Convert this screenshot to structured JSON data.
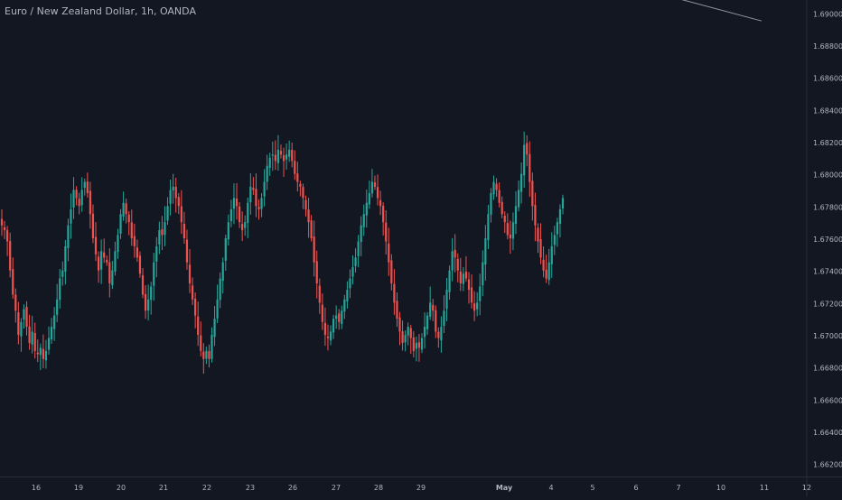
{
  "header": {
    "title": "Euro / New Zealand Dollar, 1h, OANDA"
  },
  "colors": {
    "background": "#131722",
    "up": "#26a69a",
    "down": "#ef5350",
    "axis_text": "#b2b5be",
    "axis_line": "#2a2e39"
  },
  "chart_data": {
    "type": "candlestick",
    "title": "Euro / New Zealand Dollar, 1h, OANDA",
    "ylim": [
      1.6612,
      1.6908
    ],
    "y_ticks": [
      "1.66200",
      "1.66400",
      "1.66600",
      "1.66800",
      "1.67000",
      "1.67200",
      "1.67400",
      "1.67600",
      "1.67800",
      "1.68000",
      "1.68200",
      "1.68400",
      "1.68600",
      "1.68800",
      "1.69000"
    ],
    "x_ticks": [
      "16",
      "19",
      "20",
      "21",
      "22",
      "23",
      "26",
      "27",
      "28",
      "29",
      "May",
      "4",
      "5",
      "6",
      "7",
      "10",
      "11",
      "12"
    ],
    "grid": false,
    "series_close": [
      1.6768,
      1.6765,
      1.6758,
      1.674,
      1.6725,
      1.6715,
      1.67,
      1.6708,
      1.6716,
      1.6705,
      1.6695,
      1.6702,
      1.669,
      1.6688,
      1.6692,
      1.6685,
      1.669,
      1.6698,
      1.6705,
      1.6712,
      1.6722,
      1.6735,
      1.674,
      1.6755,
      1.6768,
      1.6778,
      1.679,
      1.6785,
      1.678,
      1.679,
      1.6795,
      1.6788,
      1.6775,
      1.676,
      1.675,
      1.674,
      1.6752,
      1.6748,
      1.6745,
      1.6732,
      1.674,
      1.6752,
      1.6762,
      1.6775,
      1.6782,
      1.6775,
      1.677,
      1.676,
      1.6755,
      1.6748,
      1.6738,
      1.6725,
      1.6715,
      1.6722,
      1.673,
      1.6745,
      1.6755,
      1.6765,
      1.6762,
      1.677,
      1.678,
      1.679,
      1.6792,
      1.6785,
      1.678,
      1.677,
      1.676,
      1.6745,
      1.6732,
      1.6722,
      1.6712,
      1.67,
      1.669,
      1.6685,
      1.669,
      1.6685,
      1.67,
      1.671,
      1.6722,
      1.6735,
      1.6745,
      1.676,
      1.677,
      1.6778,
      1.6785,
      1.678,
      1.677,
      1.6765,
      1.677,
      1.6782,
      1.6792,
      1.679,
      1.678,
      1.6778,
      1.6785,
      1.6795,
      1.6805,
      1.681,
      1.6812,
      1.6808,
      1.6815,
      1.6812,
      1.6808,
      1.6812,
      1.6815,
      1.6808,
      1.68,
      1.6795,
      1.6792,
      1.6785,
      1.6778,
      1.677,
      1.676,
      1.6745,
      1.6732,
      1.672,
      1.6708,
      1.67,
      1.6698,
      1.6702,
      1.671,
      1.6712,
      1.6708,
      1.6715,
      1.6722,
      1.6728,
      1.6735,
      1.6742,
      1.6748,
      1.6758,
      1.6768,
      1.6775,
      1.6782,
      1.6788,
      1.6795,
      1.6792,
      1.6785,
      1.678,
      1.677,
      1.6758,
      1.6745,
      1.6732,
      1.672,
      1.671,
      1.6702,
      1.6695,
      1.67,
      1.6705,
      1.6698,
      1.669,
      1.6695,
      1.6692,
      1.6698,
      1.6705,
      1.6712,
      1.672,
      1.6715,
      1.6702,
      1.6698,
      1.6705,
      1.6715,
      1.6728,
      1.674,
      1.6752,
      1.6748,
      1.674,
      1.6732,
      1.6738,
      1.6735,
      1.6728,
      1.672,
      1.6715,
      1.672,
      1.673,
      1.6745,
      1.676,
      1.6775,
      1.6788,
      1.6795,
      1.679,
      1.6782,
      1.6775,
      1.677,
      1.6762,
      1.676,
      1.677,
      1.678,
      1.679,
      1.68,
      1.6818,
      1.6812,
      1.6795,
      1.678,
      1.6768,
      1.6758,
      1.6748,
      1.674,
      1.6735,
      1.6745,
      1.6755,
      1.6762,
      1.677,
      1.6778,
      1.6785
    ],
    "trendline": {
      "x": [
        "May",
        "7"
      ],
      "y": [
        1.691,
        1.6895
      ]
    },
    "xlabel": "",
    "ylabel": ""
  }
}
